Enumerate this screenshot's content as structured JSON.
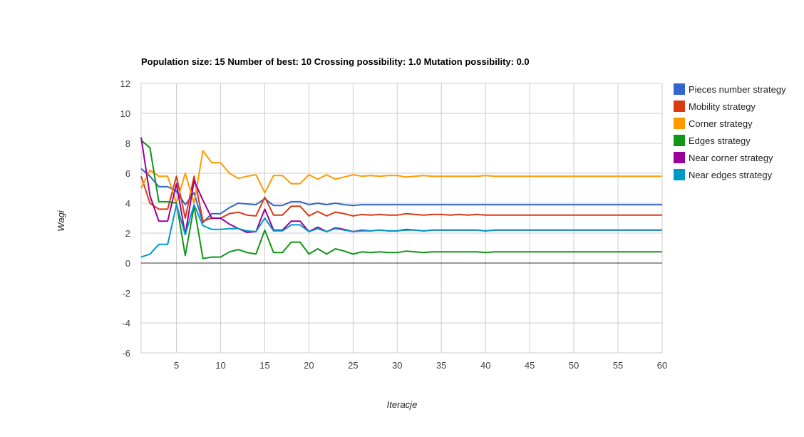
{
  "chart_data": {
    "type": "line",
    "title": "Population size: 15 Number of best: 10 Crossing possibility: 1.0 Mutation possibility: 0.0",
    "xlabel": "Iteracje",
    "ylabel": "Wagi",
    "xlim": [
      1,
      60
    ],
    "ylim": [
      -6,
      12
    ],
    "x_ticks": [
      5,
      10,
      15,
      20,
      25,
      30,
      35,
      40,
      45,
      50,
      55,
      60
    ],
    "y_ticks": [
      -6,
      -4,
      -2,
      0,
      2,
      4,
      6,
      8,
      10,
      12
    ],
    "grid": true,
    "legend_position": "right",
    "series": [
      {
        "name": "Pieces number strategy",
        "color": "#3366cc",
        "values": [
          6.3,
          5.8,
          5.1,
          5.1,
          4.8,
          3.9,
          4.7,
          2.7,
          3.3,
          3.3,
          3.7,
          4.0,
          3.95,
          3.9,
          4.3,
          3.85,
          3.85,
          4.1,
          4.1,
          3.9,
          4.0,
          3.9,
          4.0,
          3.9,
          3.85,
          3.9,
          3.9,
          3.9,
          3.9,
          3.9,
          3.9,
          3.9,
          3.9,
          3.9,
          3.9,
          3.9,
          3.9,
          3.9,
          3.9,
          3.9,
          3.9,
          3.9,
          3.9,
          3.9,
          3.9,
          3.9,
          3.9,
          3.9,
          3.9,
          3.9,
          3.9,
          3.9,
          3.9,
          3.9,
          3.9,
          3.9,
          3.9,
          3.9,
          3.9,
          3.9
        ]
      },
      {
        "name": "Mobility strategy",
        "color": "#dc3912",
        "values": [
          5.8,
          4.0,
          3.6,
          3.6,
          5.8,
          3.0,
          5.8,
          2.8,
          3.0,
          3.0,
          3.3,
          3.4,
          3.2,
          3.15,
          4.4,
          3.2,
          3.2,
          3.8,
          3.8,
          3.15,
          3.45,
          3.15,
          3.4,
          3.3,
          3.15,
          3.25,
          3.2,
          3.25,
          3.2,
          3.2,
          3.3,
          3.25,
          3.2,
          3.25,
          3.25,
          3.2,
          3.25,
          3.2,
          3.25,
          3.2,
          3.2,
          3.2,
          3.2,
          3.2,
          3.2,
          3.2,
          3.2,
          3.2,
          3.2,
          3.2,
          3.2,
          3.2,
          3.2,
          3.2,
          3.2,
          3.2,
          3.2,
          3.2,
          3.2,
          3.2
        ]
      },
      {
        "name": "Corner strategy",
        "color": "#ff9900",
        "values": [
          5.0,
          6.2,
          5.8,
          5.8,
          4.0,
          6.0,
          4.0,
          7.5,
          6.7,
          6.7,
          6.0,
          5.65,
          5.8,
          5.9,
          4.7,
          5.85,
          5.85,
          5.3,
          5.3,
          5.9,
          5.6,
          5.9,
          5.6,
          5.75,
          5.9,
          5.8,
          5.85,
          5.8,
          5.85,
          5.85,
          5.75,
          5.8,
          5.85,
          5.8,
          5.8,
          5.8,
          5.8,
          5.8,
          5.8,
          5.85,
          5.8,
          5.8,
          5.8,
          5.8,
          5.8,
          5.8,
          5.8,
          5.8,
          5.8,
          5.8,
          5.8,
          5.8,
          5.8,
          5.8,
          5.8,
          5.8,
          5.8,
          5.8,
          5.8,
          5.8
        ]
      },
      {
        "name": "Edges strategy",
        "color": "#109618",
        "values": [
          8.2,
          7.7,
          4.1,
          4.1,
          4.0,
          0.5,
          3.8,
          0.3,
          0.4,
          0.4,
          0.75,
          0.9,
          0.7,
          0.6,
          2.2,
          0.7,
          0.7,
          1.4,
          1.4,
          0.6,
          0.95,
          0.6,
          0.95,
          0.8,
          0.6,
          0.75,
          0.7,
          0.75,
          0.7,
          0.7,
          0.8,
          0.75,
          0.7,
          0.75,
          0.75,
          0.75,
          0.75,
          0.75,
          0.75,
          0.7,
          0.75,
          0.75,
          0.75,
          0.75,
          0.75,
          0.75,
          0.75,
          0.75,
          0.75,
          0.75,
          0.75,
          0.75,
          0.75,
          0.75,
          0.75,
          0.75,
          0.75,
          0.75,
          0.75,
          0.75
        ]
      },
      {
        "name": "Near corner strategy",
        "color": "#990099",
        "values": [
          8.4,
          4.5,
          2.8,
          2.8,
          5.3,
          1.9,
          5.5,
          4.2,
          3.0,
          3.0,
          2.6,
          2.3,
          2.05,
          2.1,
          3.6,
          2.2,
          2.2,
          2.8,
          2.8,
          2.1,
          2.4,
          2.1,
          2.35,
          2.25,
          2.1,
          2.2,
          2.15,
          2.2,
          2.15,
          2.15,
          2.25,
          2.2,
          2.15,
          2.2,
          2.2,
          2.2,
          2.2,
          2.2,
          2.2,
          2.15,
          2.2,
          2.2,
          2.2,
          2.2,
          2.2,
          2.2,
          2.2,
          2.2,
          2.2,
          2.2,
          2.2,
          2.2,
          2.2,
          2.2,
          2.2,
          2.2,
          2.2,
          2.2,
          2.2,
          2.2
        ]
      },
      {
        "name": "Near edges strategy",
        "color": "#0099c6",
        "values": [
          0.4,
          0.6,
          1.25,
          1.25,
          3.9,
          1.9,
          3.9,
          2.5,
          2.25,
          2.25,
          2.3,
          2.3,
          2.15,
          2.1,
          3.0,
          2.15,
          2.15,
          2.55,
          2.55,
          2.1,
          2.3,
          2.1,
          2.3,
          2.2,
          2.1,
          2.15,
          2.15,
          2.2,
          2.15,
          2.15,
          2.2,
          2.2,
          2.15,
          2.2,
          2.2,
          2.2,
          2.2,
          2.2,
          2.2,
          2.15,
          2.2,
          2.2,
          2.2,
          2.2,
          2.2,
          2.2,
          2.2,
          2.2,
          2.2,
          2.2,
          2.2,
          2.2,
          2.2,
          2.2,
          2.2,
          2.2,
          2.2,
          2.2,
          2.2,
          2.2
        ]
      }
    ]
  }
}
